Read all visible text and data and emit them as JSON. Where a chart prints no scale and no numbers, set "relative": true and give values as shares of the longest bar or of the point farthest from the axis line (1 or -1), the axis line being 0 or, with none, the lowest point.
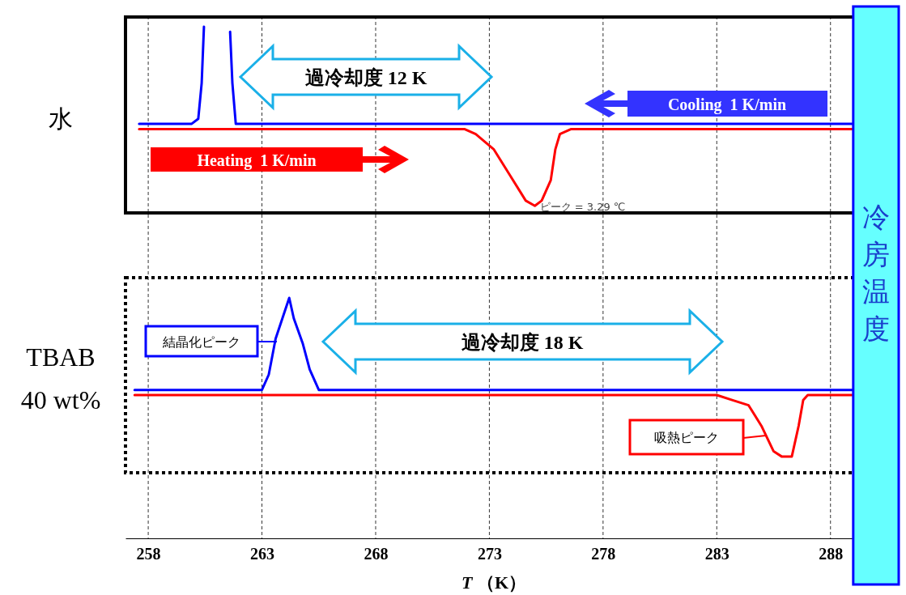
{
  "chart_data": {
    "type": "line",
    "relative": true,
    "xlabel": "T （K）",
    "xlim": [
      257,
      291
    ],
    "xticks": [
      258,
      263,
      268,
      273,
      278,
      283,
      288
    ],
    "grid": "x",
    "tick_labels": "x",
    "line_style": "solid",
    "marker": "none",
    "series": [
      {
        "color": "#0000ff",
        "x": [
          257.6,
          259.9,
          260.2,
          260.35,
          260.45,
          261.0,
          261.6,
          261.7,
          261.85,
          262.1,
          270,
          289
        ],
        "values": [
          0.81,
          0.81,
          0.82,
          0.89,
          1.0,
          null,
          0.99,
          0.89,
          0.81,
          0.81,
          0.81,
          0.81
        ]
      },
      {
        "color": "#ff0000",
        "x": [
          257.6,
          271.9,
          272.4,
          273.2,
          273.9,
          274.6,
          275.0,
          275.3,
          275.7,
          275.9,
          276.1,
          276.6,
          289
        ],
        "values": [
          0.8,
          0.8,
          0.79,
          0.76,
          0.71,
          0.66,
          0.65,
          0.66,
          0.7,
          0.76,
          0.79,
          0.8,
          0.8
        ]
      },
      {
        "color": "#0000ff",
        "x": [
          257.4,
          263.0,
          263.3,
          263.6,
          263.9,
          264.2,
          264.4,
          264.8,
          265.1,
          265.5,
          289
        ],
        "values": [
          0.29,
          0.29,
          0.32,
          0.39,
          0.43,
          0.47,
          0.43,
          0.38,
          0.33,
          0.29,
          0.29
        ]
      },
      {
        "color": "#ff0000",
        "x": [
          257.4,
          283.0,
          283.7,
          284.4,
          284.96,
          285.5,
          285.85,
          286.3,
          286.6,
          286.8,
          287.0,
          289
        ],
        "values": [
          0.28,
          0.28,
          0.27,
          0.26,
          0.22,
          0.17,
          0.16,
          0.16,
          0.22,
          0.27,
          0.28,
          0.28
        ]
      }
    ],
    "bands": [
      {
        "axis": "x",
        "from": 289,
        "to": 291,
        "label": "冷房温度",
        "color": "#66ffff"
      }
    ],
    "annotations": [
      "水",
      "TBAB",
      "40 wt%",
      "過冷却度 12 K",
      "Cooling  1 K/min",
      "Heating  1 K/min",
      {
        "text": "ピーク = 3.29 ℃",
        "x": 275.0,
        "y": 0.65
      },
      "結晶化ピーク",
      "過冷却度 18 K",
      "吸熱ピーク"
    ]
  }
}
